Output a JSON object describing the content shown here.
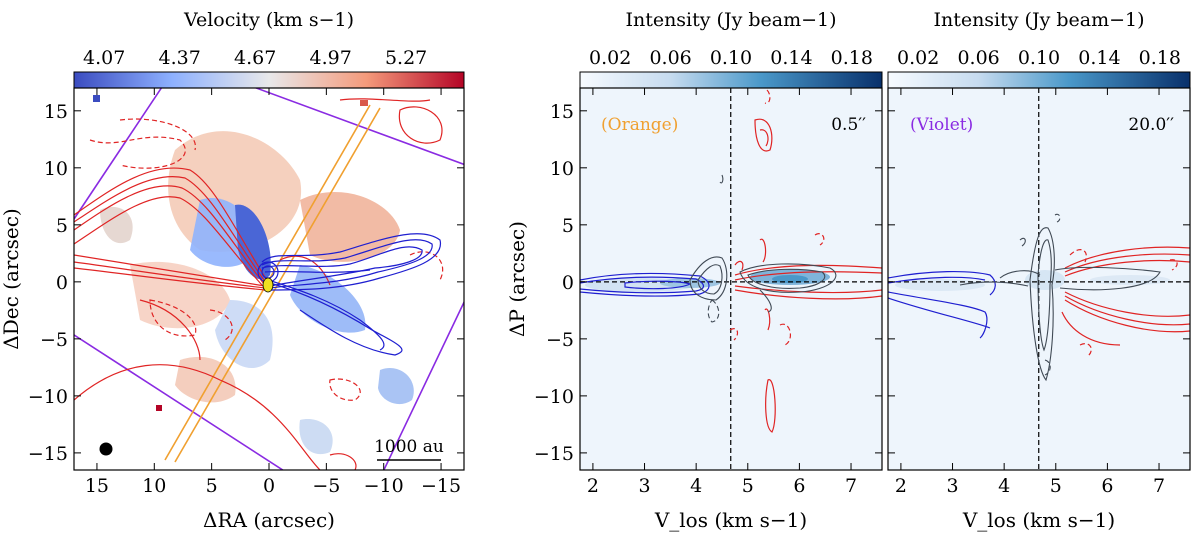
{
  "chart_data": [
    {
      "type": "heatmap",
      "panel": "velocity-map",
      "colorbar": {
        "title": "Velocity (km s−1)",
        "tick_labels": [
          "4.07",
          "4.37",
          "4.67",
          "4.97",
          "5.27"
        ],
        "ticks": [
          4.07,
          4.37,
          4.67,
          4.97,
          5.27
        ],
        "range": [
          3.95,
          5.5
        ]
      },
      "xlabel": "ΔRA (arcsec)",
      "ylabel": "ΔDec (arcsec)",
      "xlim": [
        17,
        -17
      ],
      "ylim": [
        -16.5,
        17
      ],
      "xtick_values": [
        15,
        10,
        5,
        0,
        -5,
        -10,
        -15
      ],
      "xtick_labels": [
        "15",
        "10",
        "5",
        "0",
        "−5",
        "−10",
        "−15"
      ],
      "ytick_values": [
        15,
        10,
        5,
        0,
        -5,
        -10,
        -15
      ],
      "ytick_labels": [
        "15",
        "10",
        "5",
        "0",
        "−5",
        "−10",
        "−15"
      ],
      "scalebar_label": "1000 au",
      "colors": {
        "blueshifted": "#1f1fd0",
        "redshifted": "#e02424",
        "orange_cut": "#f0a030",
        "violet_cut": "#8a2be2"
      }
    },
    {
      "type": "heatmap",
      "panel": "pv-diagram-orange",
      "colorbar": {
        "title": "Intensity (Jy beam−1)",
        "tick_labels": [
          "0.02",
          "0.06",
          "0.10",
          "0.14",
          "0.18"
        ],
        "ticks": [
          0.02,
          0.06,
          0.1,
          0.14,
          0.18
        ],
        "range": [
          0.0,
          0.2
        ]
      },
      "cut_label": "(Orange)",
      "width_label": "0.5′′",
      "xlabel": "V_los (km s−1)",
      "ylabel": "ΔP (arcsec)",
      "xlim": [
        1.75,
        7.6
      ],
      "ylim": [
        -16.5,
        17
      ],
      "systemic_velocity": 4.67,
      "xtick_values": [
        2,
        3,
        4,
        5,
        6,
        7
      ],
      "xtick_labels": [
        "2",
        "3",
        "4",
        "5",
        "6",
        "7"
      ],
      "ytick_values": [
        15,
        10,
        5,
        0,
        -5,
        -10,
        -15
      ],
      "ytick_labels": [
        "15",
        "10",
        "5",
        "0",
        "−5",
        "−10",
        "−15"
      ]
    },
    {
      "type": "heatmap",
      "panel": "pv-diagram-violet",
      "colorbar": {
        "title": "Intensity (Jy beam−1)",
        "tick_labels": [
          "0.02",
          "0.06",
          "0.10",
          "0.14",
          "0.18"
        ],
        "ticks": [
          0.02,
          0.06,
          0.1,
          0.14,
          0.18
        ],
        "range": [
          0.0,
          0.2
        ]
      },
      "cut_label": "(Violet)",
      "width_label": "20.0′′",
      "xlabel": "V_los (km s−1)",
      "xlim": [
        1.75,
        7.6
      ],
      "ylim": [
        -16.5,
        17
      ],
      "systemic_velocity": 4.67,
      "xtick_values": [
        2,
        3,
        4,
        5,
        6,
        7
      ],
      "xtick_labels": [
        "2",
        "3",
        "4",
        "5",
        "6",
        "7"
      ]
    }
  ]
}
